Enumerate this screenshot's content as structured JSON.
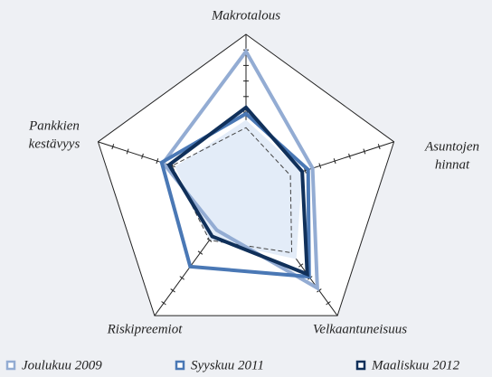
{
  "chart_data": {
    "type": "radar",
    "categories": [
      [
        "Makrotalous"
      ],
      [
        "Asuntojen",
        "hinnat"
      ],
      [
        "Velkaantuneisuus"
      ],
      [
        "Riskipreemiot"
      ],
      [
        "Pankkien",
        "kestävyys"
      ]
    ],
    "rlim": [
      0,
      10
    ],
    "rticks": [
      1,
      2,
      3,
      4,
      5,
      6,
      7,
      8,
      9
    ],
    "series": [
      {
        "fill": "#e3ecf8",
        "values": [
          4.5,
          3.8,
          5.5,
          4.0,
          4.8
        ]
      },
      {
        "color": "#444444",
        "dashed": true,
        "values": [
          4.0,
          3.0,
          5.0,
          4.0,
          5.0
        ]
      },
      {
        "name": "Joulukuu 2009",
        "color": "#93acd3",
        "values": [
          8.9,
          4.5,
          7.8,
          3.2,
          5.6
        ]
      },
      {
        "name": "Syyskuu 2011",
        "color": "#4a78b5",
        "values": [
          4.9,
          4.2,
          6.9,
          6.1,
          5.7
        ]
      },
      {
        "name": "Maaliskuu 2012",
        "color": "#10305a",
        "values": [
          5.3,
          3.8,
          6.7,
          3.7,
          5.2
        ]
      }
    ]
  }
}
